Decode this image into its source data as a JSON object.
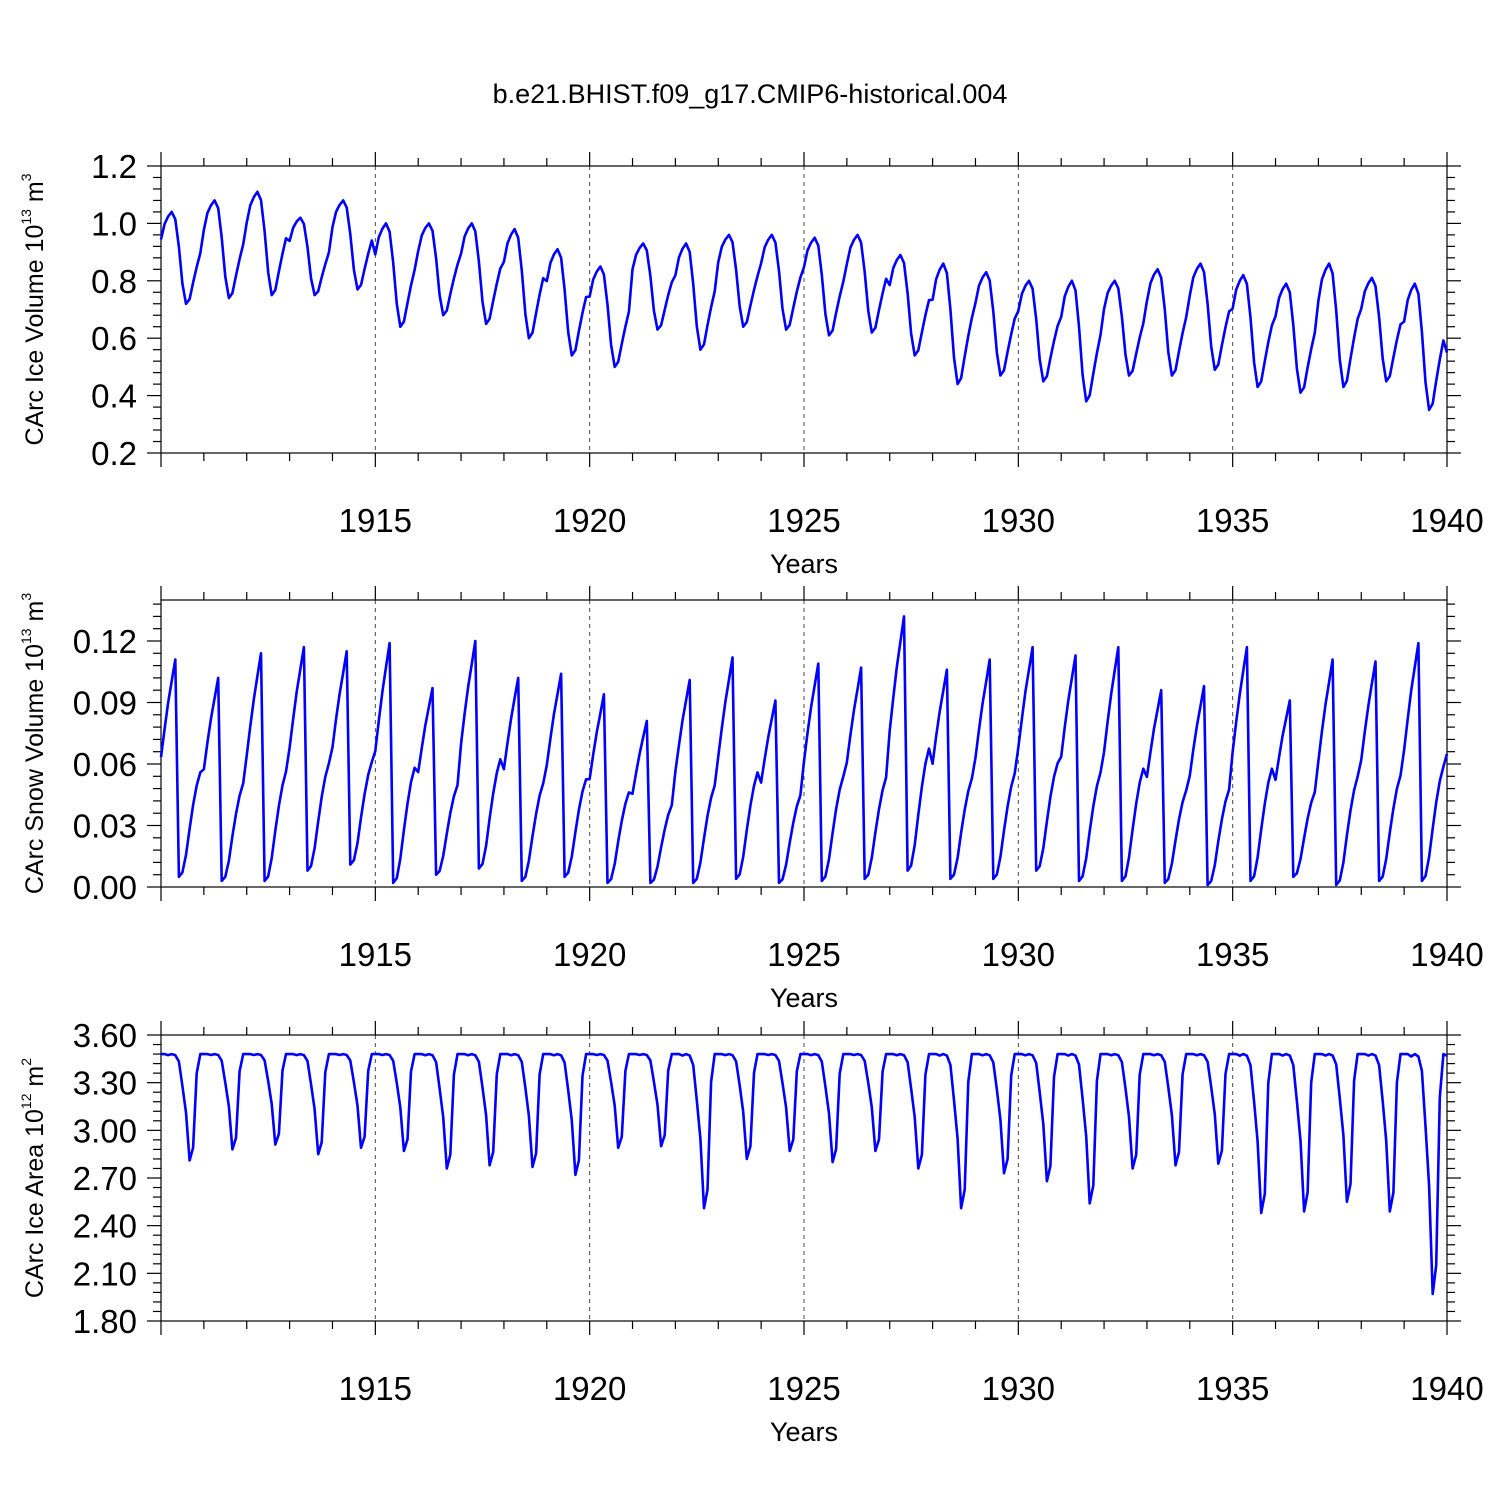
{
  "title": "b.e21.BHIST.f09_g17.CMIP6-historical.004",
  "colors": {
    "line": "#0000ff",
    "axis": "#000000"
  },
  "chart_data": [
    {
      "type": "line",
      "id": "ice-volume",
      "ylabel": "CArc Ice Volume 10",
      "ylabel_exp": "13",
      "ylabel_unit": " m",
      "ylabel_unit_exp": "3",
      "xlabel": "Years",
      "xlim": [
        1910,
        1940
      ],
      "ylim": [
        0.2,
        1.2
      ],
      "yticks": [
        0.2,
        0.4,
        0.6,
        0.8,
        1.0,
        1.2
      ],
      "ytick_labels": [
        "0.2",
        "0.4",
        "0.6",
        "0.8",
        "1.0",
        "1.2"
      ],
      "xticks": [
        1915,
        1920,
        1925,
        1930,
        1935,
        1940
      ],
      "xtick_labels": [
        "1915",
        "1920",
        "1925",
        "1930",
        "1935",
        "1940"
      ],
      "x_start": 1910.0,
      "x_step": 0.08333,
      "yearly_max": [
        1.04,
        1.08,
        1.11,
        1.02,
        1.08,
        1.0,
        1.0,
        1.0,
        0.98,
        0.91,
        0.85,
        0.93,
        0.93,
        0.96,
        0.96,
        0.95,
        0.96,
        0.89,
        0.86,
        0.83,
        0.8,
        0.8,
        0.8,
        0.84,
        0.86,
        0.82,
        0.79,
        0.86,
        0.81,
        0.79
      ],
      "yearly_min": [
        0.72,
        0.74,
        0.75,
        0.75,
        0.77,
        0.64,
        0.68,
        0.65,
        0.6,
        0.54,
        0.5,
        0.63,
        0.56,
        0.64,
        0.63,
        0.61,
        0.62,
        0.54,
        0.44,
        0.47,
        0.45,
        0.38,
        0.47,
        0.47,
        0.49,
        0.43,
        0.41,
        0.43,
        0.45,
        0.35
      ],
      "end_value": 0.55
    },
    {
      "type": "line",
      "id": "snow-volume",
      "ylabel": "CArc Snow Volume 10",
      "ylabel_exp": "13",
      "ylabel_unit": " m",
      "ylabel_unit_exp": "3",
      "xlabel": "Years",
      "xlim": [
        1910,
        1940
      ],
      "ylim": [
        0.0,
        0.14
      ],
      "yticks": [
        0.0,
        0.03,
        0.06,
        0.09,
        0.12
      ],
      "ytick_labels": [
        "0.00",
        "0.03",
        "0.06",
        "0.09",
        "0.12"
      ],
      "xticks": [
        1915,
        1920,
        1925,
        1930,
        1935,
        1940
      ],
      "xtick_labels": [
        "1915",
        "1920",
        "1925",
        "1930",
        "1935",
        "1940"
      ],
      "x_start": 1910.0,
      "x_step": 0.08333,
      "yearly_max": [
        0.111,
        0.102,
        0.114,
        0.117,
        0.115,
        0.119,
        0.097,
        0.12,
        0.102,
        0.104,
        0.094,
        0.081,
        0.101,
        0.112,
        0.091,
        0.109,
        0.107,
        0.132,
        0.106,
        0.111,
        0.117,
        0.113,
        0.117,
        0.096,
        0.098,
        0.117,
        0.091,
        0.111,
        0.11,
        0.119
      ],
      "yearly_min": [
        0.005,
        0.003,
        0.003,
        0.008,
        0.011,
        0.002,
        0.006,
        0.009,
        0.003,
        0.005,
        0.002,
        0.002,
        0.002,
        0.004,
        0.002,
        0.003,
        0.004,
        0.008,
        0.004,
        0.004,
        0.008,
        0.003,
        0.003,
        0.002,
        0.001,
        0.003,
        0.005,
        0.001,
        0.003,
        0.003
      ],
      "end_value": 0.065
    },
    {
      "type": "line",
      "id": "ice-area",
      "ylabel": "CArc Ice Area 10",
      "ylabel_exp": "12",
      "ylabel_unit": " m",
      "ylabel_unit_exp": "2",
      "xlabel": "Years",
      "xlim": [
        1910,
        1940
      ],
      "ylim": [
        1.8,
        3.6
      ],
      "yticks": [
        1.8,
        2.1,
        2.4,
        2.7,
        3.0,
        3.3,
        3.6
      ],
      "ytick_labels": [
        "1.80",
        "2.10",
        "2.40",
        "2.70",
        "3.00",
        "3.30",
        "3.60"
      ],
      "xticks": [
        1915,
        1920,
        1925,
        1930,
        1935,
        1940
      ],
      "xtick_labels": [
        "1915",
        "1920",
        "1925",
        "1930",
        "1935",
        "1940"
      ],
      "x_start": 1910.0,
      "x_step": 0.08333,
      "yearly_max": [
        3.48,
        3.48,
        3.48,
        3.48,
        3.48,
        3.48,
        3.48,
        3.48,
        3.48,
        3.48,
        3.48,
        3.48,
        3.48,
        3.48,
        3.48,
        3.48,
        3.48,
        3.48,
        3.48,
        3.48,
        3.48,
        3.48,
        3.48,
        3.48,
        3.48,
        3.48,
        3.48,
        3.48,
        3.48,
        3.48
      ],
      "yearly_min": [
        2.81,
        2.88,
        2.91,
        2.85,
        2.89,
        2.87,
        2.76,
        2.78,
        2.77,
        2.72,
        2.89,
        2.9,
        2.51,
        2.82,
        2.87,
        2.8,
        2.87,
        2.76,
        2.51,
        2.73,
        2.68,
        2.54,
        2.76,
        2.78,
        2.79,
        2.48,
        2.49,
        2.55,
        2.49,
        1.97
      ],
      "end_value": 3.47
    }
  ]
}
